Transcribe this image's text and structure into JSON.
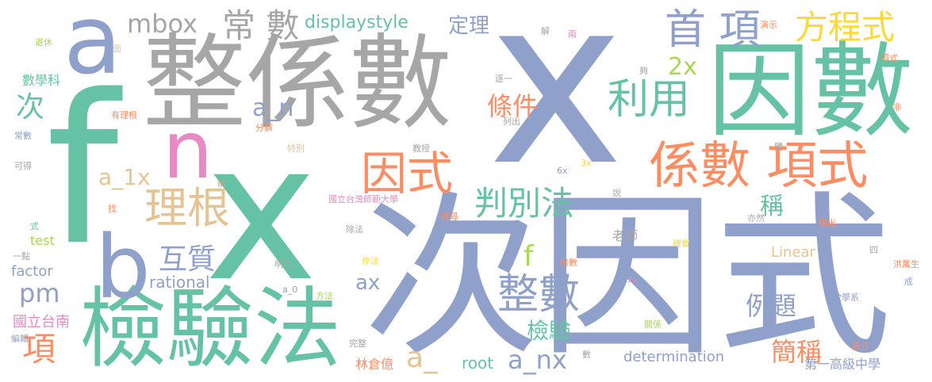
{
  "colors": {
    "blue": "#8fa0cb",
    "green": "#66c2a5",
    "gray": "#a6a6a6",
    "orange": "#fc8d62",
    "tan": "#e5c494",
    "pink": "#e78ac3",
    "olive": "#a6d854",
    "yellow": "#ffd92f"
  },
  "words": [
    {
      "id": "w-x-big",
      "text": "x"
    },
    {
      "id": "w-f-big",
      "text": "f"
    },
    {
      "id": "w-x-mid",
      "text": "x"
    },
    {
      "id": "w-ci-yinshi",
      "text": "次因式"
    },
    {
      "id": "w-zheng-xishu",
      "text": "整係數"
    },
    {
      "id": "w-yinshu",
      "text": "因數"
    },
    {
      "id": "w-jianyan-fa",
      "text": "檢驗法"
    },
    {
      "id": "w-a-top",
      "text": "a"
    },
    {
      "id": "w-b",
      "text": "b"
    },
    {
      "id": "w-n",
      "text": "n"
    },
    {
      "id": "w-xishu-xiangshi",
      "text": "係數 項式"
    },
    {
      "id": "w-yinshi-orange",
      "text": "因式"
    },
    {
      "id": "w-shouxiang",
      "text": "首 項"
    },
    {
      "id": "w-changshu",
      "text": "常 數"
    },
    {
      "id": "w-fangchengshi",
      "text": "方程式"
    },
    {
      "id": "w-liyong",
      "text": "利用"
    },
    {
      "id": "w-ligen",
      "text": "理根"
    },
    {
      "id": "w-panbiefa",
      "text": "判別法"
    },
    {
      "id": "w-zhengshu",
      "text": "整數"
    },
    {
      "id": "w-huzhi",
      "text": "互質"
    },
    {
      "id": "w-tiaojian",
      "text": "條件"
    },
    {
      "id": "w-xiang",
      "text": "項"
    },
    {
      "id": "w-ci",
      "text": "次"
    },
    {
      "id": "w-liti",
      "text": "例題"
    },
    {
      "id": "w-jiancheng",
      "text": "簡稱"
    },
    {
      "id": "w-jianyan",
      "text": "檢驗"
    },
    {
      "id": "w-cheng",
      "text": "稱"
    },
    {
      "id": "w-mbox",
      "text": "mbox"
    },
    {
      "id": "w-displaystyle",
      "text": "displaystyle"
    },
    {
      "id": "w-dingli",
      "text": "定理"
    },
    {
      "id": "w-2x",
      "text": "2x"
    },
    {
      "id": "w-a-n",
      "text": "a_n"
    },
    {
      "id": "w-a-1x",
      "text": "a_1x"
    },
    {
      "id": "w-pm",
      "text": "pm"
    },
    {
      "id": "w-ax",
      "text": "ax"
    },
    {
      "id": "w-f-small",
      "text": "f"
    },
    {
      "id": "w-a-underscore",
      "text": "a_"
    },
    {
      "id": "w-root",
      "text": "root"
    },
    {
      "id": "w-a-nx",
      "text": "a_nx"
    },
    {
      "id": "w-determination",
      "text": "determination"
    },
    {
      "id": "w-rational",
      "text": "rational"
    },
    {
      "id": "w-linear",
      "text": "Linear"
    },
    {
      "id": "w-factor",
      "text": "factor"
    },
    {
      "id": "w-test",
      "text": "test"
    },
    {
      "id": "w-guoli-tainan",
      "text": "國立台南"
    },
    {
      "id": "w-laoshi",
      "text": "老師"
    },
    {
      "id": "w-shuxueke",
      "text": "數學科"
    },
    {
      "id": "w-diyi-gaoji",
      "text": "第一高級中學"
    },
    {
      "id": "w-lin-cangyi",
      "text": "林倉億"
    },
    {
      "id": "w-hong-wansheng",
      "text": "洪萬生"
    },
    {
      "id": "w-tuixiu",
      "text": "退休"
    },
    {
      "id": "w-mian",
      "text": "面"
    },
    {
      "id": "w-youligen",
      "text": "有理根"
    },
    {
      "id": "w-changshu-small",
      "text": "常數"
    },
    {
      "id": "w-kede",
      "text": "可得"
    },
    {
      "id": "w-shi",
      "text": "式"
    },
    {
      "id": "w-yidian",
      "text": "一點"
    },
    {
      "id": "w-bianji",
      "text": "編輯"
    },
    {
      "id": "w-fenjie",
      "text": "分解"
    },
    {
      "id": "w-tebie",
      "text": "特別"
    },
    {
      "id": "w-jiaoshou",
      "text": "教授"
    },
    {
      "id": "w-guoli-taiwan-shifan",
      "text": "國立台灣師範大學"
    },
    {
      "id": "w-qian",
      "text": "前"
    },
    {
      "id": "w-zhao",
      "text": "找"
    },
    {
      "id": "w-chufa",
      "text": "除法"
    },
    {
      "id": "w-mingbai",
      "text": "明白"
    },
    {
      "id": "w-zuofa",
      "text": "作法"
    },
    {
      "id": "w-a-0",
      "text": "a_0"
    },
    {
      "id": "w-fangfa",
      "text": "方法"
    },
    {
      "id": "w-wanzheng",
      "text": "完整"
    },
    {
      "id": "w-jie",
      "text": "解"
    },
    {
      "id": "w-liang",
      "text": "兩"
    },
    {
      "id": "w-yanshi",
      "text": "演示"
    },
    {
      "id": "w-gou",
      "text": "夠"
    },
    {
      "id": "w-zhuyi",
      "text": "逐一"
    },
    {
      "id": "w-lichu",
      "text": "列出"
    },
    {
      "id": "w-xiangshi-small",
      "text": "項式"
    },
    {
      "id": "w-fei",
      "text": "非"
    },
    {
      "id": "w-ti",
      "text": "體"
    },
    {
      "id": "w-3x",
      "text": "3x"
    },
    {
      "id": "w-6x",
      "text": "6x"
    },
    {
      "id": "w-shuo",
      "text": "說"
    },
    {
      "id": "w-zhaoxun",
      "text": "找尋"
    },
    {
      "id": "w-yiran",
      "text": "亦然"
    },
    {
      "id": "w-zhaochu",
      "text": "找出"
    },
    {
      "id": "w-queshi",
      "text": "確實"
    },
    {
      "id": "w-si",
      "text": "四"
    },
    {
      "id": "w-beishu",
      "text": "倍數"
    },
    {
      "id": "w-7x",
      "text": "7x"
    },
    {
      "id": "w-cheng-small",
      "text": "成"
    },
    {
      "id": "w-shuxuexi",
      "text": "數學系"
    },
    {
      "id": "w-guanxi",
      "text": "關係"
    },
    {
      "id": "w-zeren",
      "text": "責任"
    },
    {
      "id": "w-shu-small",
      "text": "數"
    }
  ]
}
